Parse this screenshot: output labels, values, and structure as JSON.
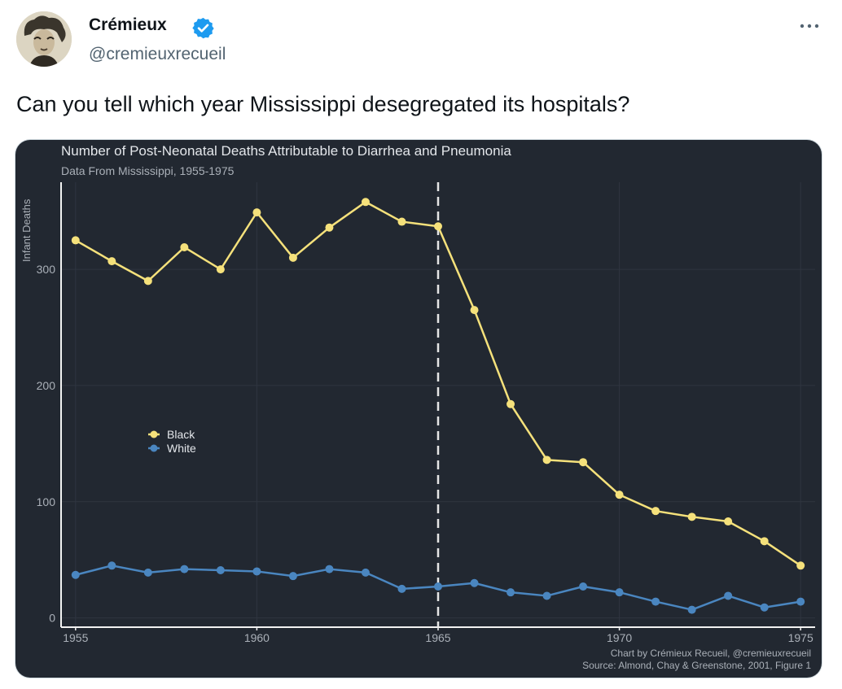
{
  "tweet": {
    "author": {
      "name": "Crémieux",
      "handle": "@cremieuxrecueil",
      "verified": true,
      "badge_color": "#1d9bf0"
    },
    "more_icon": "more-horizontal-icon",
    "text": "Can you tell which year Mississippi desegregated its hospitals?"
  },
  "chart_data": {
    "type": "line",
    "title": "Number of Post-Neonatal Deaths Attributable to Diarrhea and Pneumonia",
    "subtitle": "Data From Mississippi, 1955-1975",
    "ylabel": "Infant Deaths",
    "xlabel": "",
    "x": [
      1955,
      1956,
      1957,
      1958,
      1959,
      1960,
      1961,
      1962,
      1963,
      1964,
      1965,
      1966,
      1967,
      1968,
      1969,
      1970,
      1971,
      1972,
      1973,
      1974,
      1975
    ],
    "xlim": [
      1954.6,
      1975.4
    ],
    "ylim": [
      -8,
      375
    ],
    "xticks": [
      1955,
      1960,
      1965,
      1970,
      1975
    ],
    "yticks": [
      0,
      100,
      200,
      300
    ],
    "grid": true,
    "legend_position": "left-center",
    "vline": 1965,
    "series": [
      {
        "name": "Black",
        "color": "#f5e17b",
        "values": [
          325,
          307,
          290,
          319,
          300,
          349,
          310,
          336,
          358,
          341,
          337,
          265,
          184,
          136,
          134,
          106,
          92,
          87,
          83,
          66,
          45
        ]
      },
      {
        "name": "White",
        "color": "#4a86c0",
        "values": [
          37,
          45,
          39,
          42,
          41,
          40,
          36,
          42,
          39,
          25,
          27,
          30,
          22,
          19,
          27,
          22,
          14,
          7,
          19,
          9,
          14
        ]
      }
    ],
    "credits": [
      "Chart by Crémieux Recueil, @cremieuxrecueil",
      "Source: Almond, Chay & Greenstone, 2001, Figure 1"
    ]
  }
}
